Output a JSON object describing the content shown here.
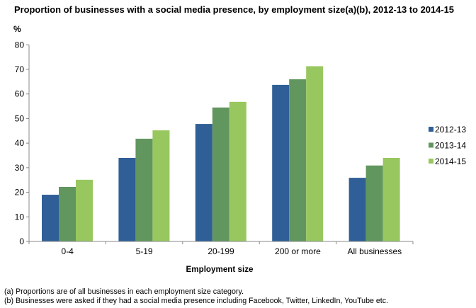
{
  "chart_data": {
    "type": "bar",
    "title": "Proportion of businesses  with a social media presence, by employment size(a)(b), 2012-13  to 2014-15",
    "ylabel": "%",
    "xlabel": "Employment size",
    "ylim": [
      0,
      80
    ],
    "yticks": [
      "0",
      "10",
      "20",
      "30",
      "40",
      "50",
      "60",
      "70",
      "80"
    ],
    "categories": [
      "0-4",
      "5-19",
      "20-199",
      "200 or more",
      "All businesses"
    ],
    "series": [
      {
        "name": "2012-13",
        "color": "#2f5f96",
        "values": [
          19.0,
          34.0,
          47.8,
          63.7,
          25.9
        ]
      },
      {
        "name": "2013-14",
        "color": "#61965e",
        "values": [
          22.2,
          41.8,
          54.5,
          66.0,
          30.9
        ]
      },
      {
        "name": "2014-15",
        "color": "#98c75f",
        "values": [
          25.1,
          45.2,
          56.8,
          71.3,
          34.0
        ]
      }
    ],
    "grid": false,
    "legend": "right",
    "footnotes": [
      "(a) Proportions are of all businesses in each employment size category.",
      "(b) Businesses were asked if they had a social media presence including Facebook, Twitter, LinkedIn, YouTube etc."
    ]
  }
}
